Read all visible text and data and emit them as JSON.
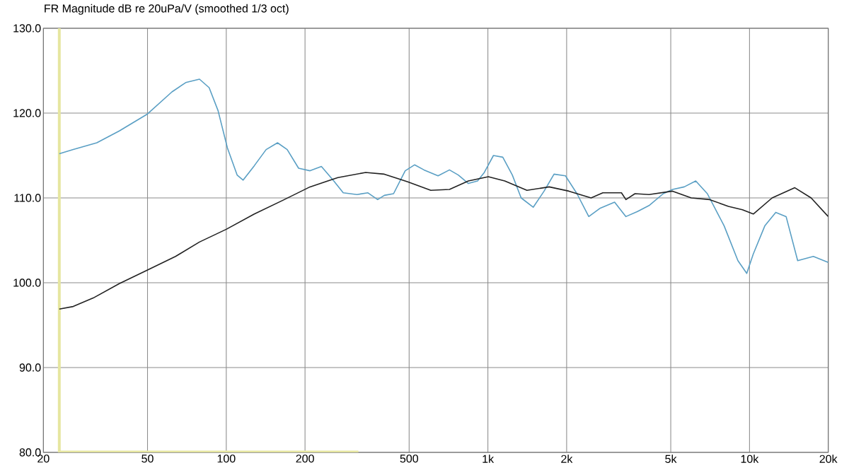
{
  "chart_data": {
    "type": "line",
    "title": "FR Magnitude dB re 20uPa/V (smoothed 1/3 oct)",
    "log": "x",
    "grid": true,
    "marker": "none",
    "line_style": "solid",
    "xlim": [
      20,
      20000
    ],
    "ylim": [
      80,
      130
    ],
    "xticks": [
      20,
      50,
      100,
      200,
      500,
      {
        "value": 1000,
        "label": "1k"
      },
      {
        "value": 2000,
        "label": "2k"
      },
      {
        "value": 5000,
        "label": "5k"
      },
      {
        "value": 10000,
        "label": "10k"
      },
      {
        "value": 20000,
        "label": "20k"
      }
    ],
    "yticks": [
      {
        "value": 80,
        "label": "80.0"
      },
      {
        "value": 90,
        "label": "90.0"
      },
      {
        "value": 100,
        "label": "100.0"
      },
      {
        "value": 110,
        "label": "110.0"
      },
      {
        "value": 120,
        "label": "120.0"
      },
      {
        "value": 130,
        "label": "130.0"
      }
    ],
    "ref_lines": [
      {
        "axis": "x",
        "value": 23,
        "color": "#e6e6a0"
      }
    ],
    "series": [
      {
        "color": "#e6e6a0",
        "x": [
          23,
          320
        ],
        "values": [
          80,
          80
        ]
      },
      {
        "color": "#5a9fc4",
        "x": [
          23,
          26,
          32,
          39,
          50,
          62,
          70,
          79,
          86,
          93,
          101,
          110,
          116,
          128,
          142,
          157,
          171,
          189,
          209,
          231,
          256,
          280,
          316,
          348,
          379,
          402,
          436,
          483,
          525,
          570,
          645,
          713,
          771,
          842,
          913,
          969,
          1050,
          1140,
          1240,
          1340,
          1490,
          1640,
          1790,
          1980,
          2190,
          2430,
          2690,
          3050,
          3370,
          3730,
          4130,
          4680,
          5080,
          5630,
          6230,
          6900,
          8000,
          9030,
          9760,
          10340,
          11440,
          12600,
          13800,
          15280,
          17540,
          20000
        ],
        "values": [
          115.2,
          115.7,
          116.5,
          117.9,
          119.9,
          122.5,
          123.6,
          124.0,
          123.0,
          120.3,
          115.9,
          112.7,
          112.1,
          113.8,
          115.7,
          116.5,
          115.7,
          113.5,
          113.2,
          113.7,
          112.1,
          110.6,
          110.4,
          110.6,
          109.8,
          110.3,
          110.5,
          113.2,
          113.9,
          113.3,
          112.6,
          113.3,
          112.7,
          111.7,
          112.0,
          113.0,
          115.0,
          114.8,
          112.7,
          110.0,
          108.9,
          110.8,
          112.8,
          112.6,
          110.5,
          107.8,
          108.8,
          109.5,
          107.8,
          108.4,
          109.1,
          110.5,
          111.0,
          111.3,
          112.0,
          110.5,
          106.7,
          102.6,
          101.1,
          103.4,
          106.7,
          108.3,
          107.8,
          102.6,
          103.1,
          102.4
        ]
      },
      {
        "color": "#222222",
        "x": [
          23,
          26,
          31,
          39,
          50,
          64,
          79,
          100,
          128,
          164,
          209,
          267,
          341,
          402,
          494,
          605,
          713,
          842,
          1004,
          1160,
          1410,
          1715,
          2040,
          2480,
          2750,
          3240,
          3370,
          3650,
          4130,
          5080,
          5990,
          7050,
          8310,
          9400,
          10340,
          12200,
          14900,
          17200,
          20000
        ],
        "values": [
          96.9,
          97.2,
          98.2,
          99.9,
          101.5,
          103.1,
          104.8,
          106.3,
          108.1,
          109.7,
          111.3,
          112.4,
          113.0,
          112.8,
          111.9,
          110.9,
          111.0,
          112.0,
          112.5,
          112.0,
          110.9,
          111.3,
          110.8,
          110.0,
          110.6,
          110.6,
          109.8,
          110.5,
          110.4,
          110.8,
          110.0,
          109.8,
          109.0,
          108.6,
          108.1,
          110.0,
          111.2,
          110.0,
          107.8
        ]
      }
    ]
  }
}
